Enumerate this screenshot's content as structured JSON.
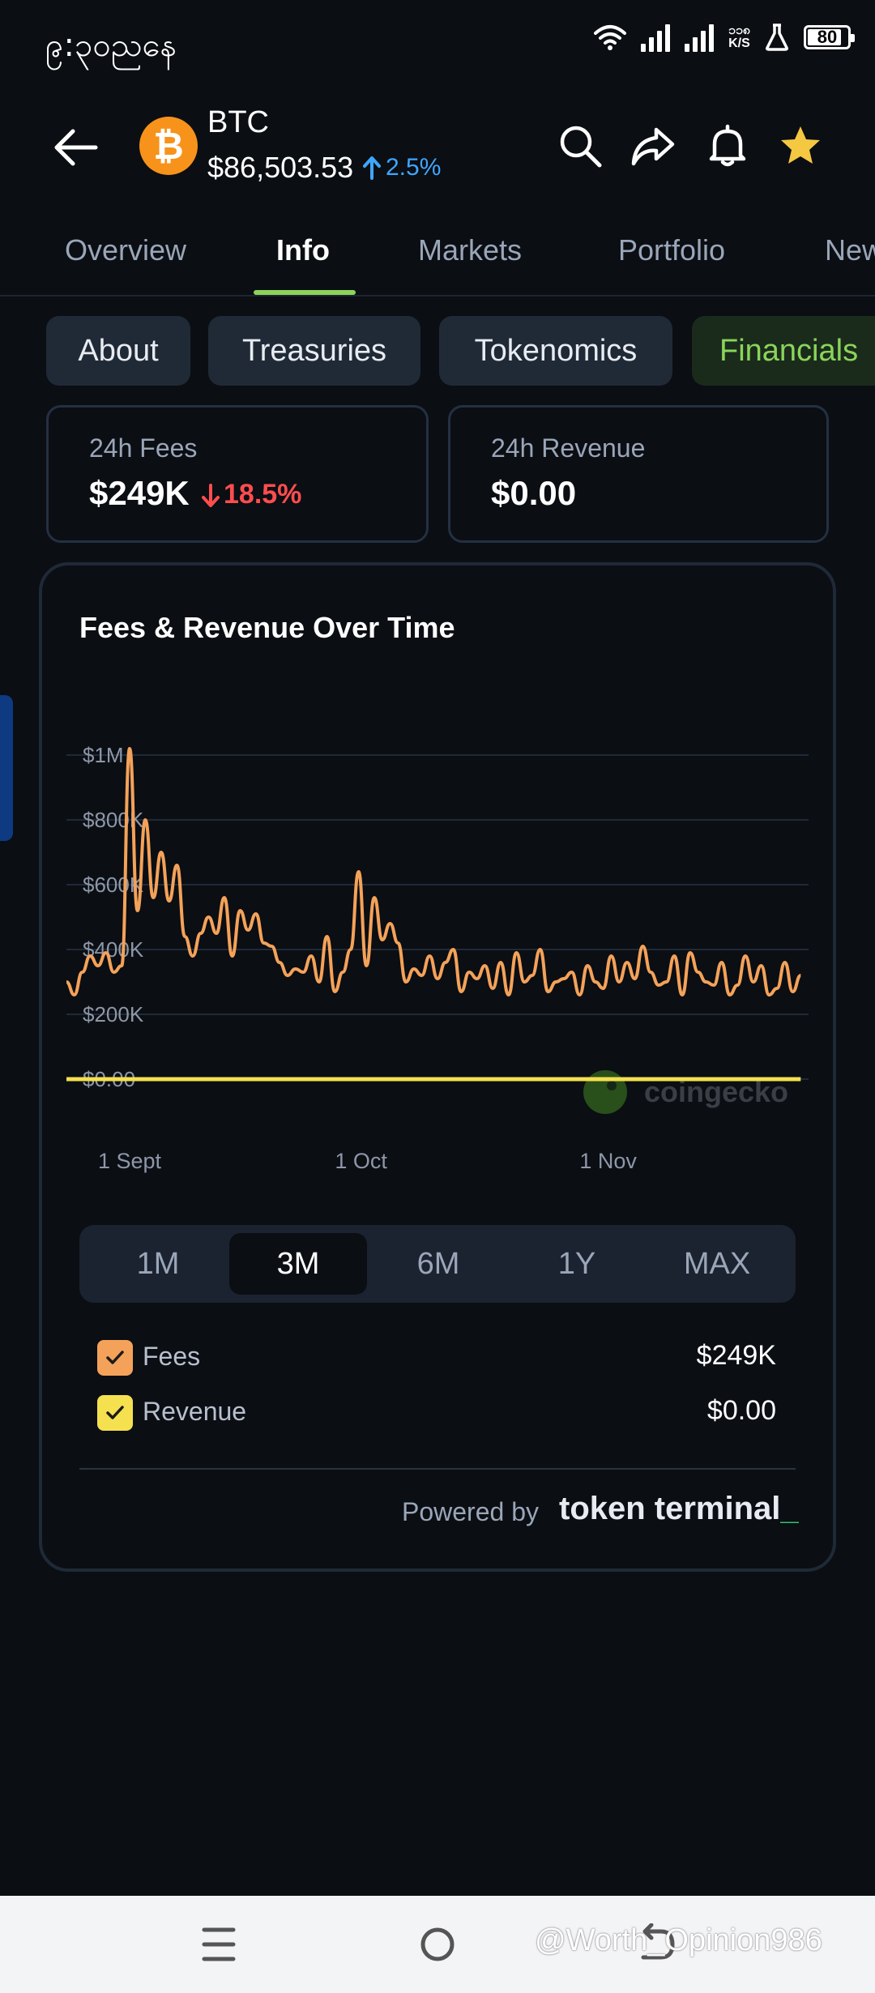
{
  "status_bar": {
    "time": "၉:၃၀ညနေ",
    "net_speed_value": "၁၁၈",
    "net_speed_unit": "K/S",
    "battery": "80"
  },
  "header": {
    "symbol": "BTC",
    "price": "$86,503.53",
    "change": "2.5%",
    "logo_glyph": "₿",
    "icons": [
      "back-arrow-icon",
      "search-icon",
      "share-icon",
      "bell-icon",
      "star-icon"
    ],
    "star_color": "#f5c842",
    "logo_color": "#f7931a"
  },
  "tabs": [
    {
      "label": "Overview"
    },
    {
      "label": "Info",
      "active": true
    },
    {
      "label": "Markets"
    },
    {
      "label": "Portfolio"
    },
    {
      "label": "New"
    }
  ],
  "chips": [
    {
      "label": "About"
    },
    {
      "label": "Treasuries"
    },
    {
      "label": "Tokenomics"
    },
    {
      "label": "Financials",
      "active": true
    }
  ],
  "stats": {
    "fees": {
      "label": "24h Fees",
      "value": "$249K",
      "change": "18.5%",
      "direction": "down"
    },
    "revenue": {
      "label": "24h Revenue",
      "value": "$0.00"
    }
  },
  "chart": {
    "title": "Fees & Revenue Over Time",
    "watermark": "coingecko"
  },
  "chart_data": {
    "type": "line",
    "title": "Fees & Revenue Over Time",
    "ylim": [
      0,
      1000000
    ],
    "y_ticks": [
      "$0.00",
      "$200K",
      "$400K",
      "$600K",
      "$800K",
      "$1M"
    ],
    "y_tick_values": [
      0,
      200000,
      400000,
      600000,
      800000,
      1000000
    ],
    "x_ticks": [
      "1 Sept",
      "1 Oct",
      "1 Nov"
    ],
    "x_tick_positions": [
      4,
      34,
      65
    ],
    "x_range": [
      0,
      94
    ],
    "grid": true,
    "series": [
      {
        "name": "Fees",
        "color": "#f4a259",
        "values": [
          300000,
          260000,
          330000,
          380000,
          350000,
          390000,
          330000,
          350000,
          1020000,
          520000,
          800000,
          560000,
          700000,
          550000,
          660000,
          440000,
          380000,
          450000,
          500000,
          450000,
          560000,
          380000,
          520000,
          460000,
          510000,
          420000,
          410000,
          360000,
          320000,
          340000,
          330000,
          380000,
          300000,
          440000,
          270000,
          330000,
          400000,
          640000,
          350000,
          560000,
          430000,
          480000,
          420000,
          300000,
          340000,
          320000,
          380000,
          310000,
          360000,
          400000,
          270000,
          330000,
          310000,
          350000,
          280000,
          360000,
          260000,
          390000,
          300000,
          320000,
          400000,
          270000,
          300000,
          310000,
          330000,
          260000,
          350000,
          300000,
          280000,
          380000,
          300000,
          360000,
          310000,
          410000,
          330000,
          290000,
          300000,
          380000,
          260000,
          390000,
          330000,
          300000,
          290000,
          360000,
          260000,
          290000,
          380000,
          300000,
          350000,
          260000,
          280000,
          360000,
          270000,
          320000
        ]
      },
      {
        "name": "Revenue",
        "color": "#f5e04f",
        "values": [
          0,
          0,
          0,
          0,
          0,
          0,
          0,
          0,
          0,
          0,
          0,
          0,
          0,
          0,
          0,
          0,
          0,
          0,
          0,
          0,
          0,
          0,
          0,
          0,
          0,
          0,
          0,
          0,
          0,
          0,
          0,
          0,
          0,
          0,
          0,
          0,
          0,
          0,
          0,
          0,
          0,
          0,
          0,
          0,
          0,
          0,
          0,
          0,
          0,
          0,
          0,
          0,
          0,
          0,
          0,
          0,
          0,
          0,
          0,
          0,
          0,
          0,
          0,
          0,
          0,
          0,
          0,
          0,
          0,
          0,
          0,
          0,
          0,
          0,
          0,
          0,
          0,
          0,
          0,
          0,
          0,
          0,
          0,
          0,
          0,
          0,
          0,
          0,
          0,
          0,
          0,
          0,
          0,
          0
        ]
      }
    ]
  },
  "range": {
    "options": [
      "1M",
      "3M",
      "6M",
      "1Y",
      "MAX"
    ],
    "selected": "3M"
  },
  "legend": [
    {
      "label": "Fees",
      "value": "$249K",
      "color": "#f4a259"
    },
    {
      "label": "Revenue",
      "value": "$0.00",
      "color": "#f5e04f"
    }
  ],
  "powered": {
    "prefix": "Powered by",
    "brand": "token terminal",
    "brand_cursor": "_"
  },
  "watermark": "@Worth_Opinion986"
}
